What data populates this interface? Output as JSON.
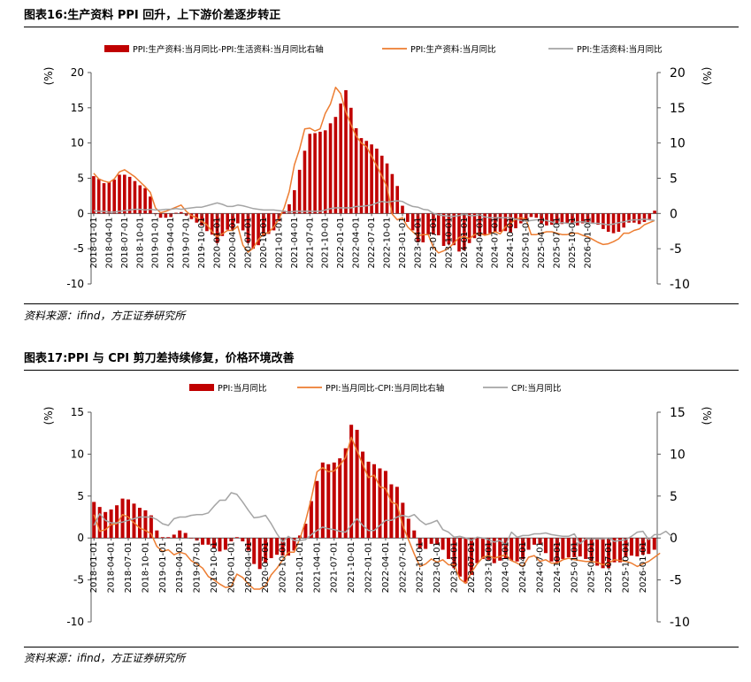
{
  "figures": [
    {
      "title": "图表16:生产资料 PPI 回升，上下游价差逐步转正",
      "source": "资料来源：ifind，方正证券研究所",
      "left_unit": "(%)",
      "right_unit": "(%)",
      "legend": [
        "PPI:生产资料:当月同比-PPI:生活资料:当月同比右轴",
        "PPI:生产资料:当月同比",
        "PPI:生活资料:当月同比"
      ]
    },
    {
      "title": "图表17:PPI 与 CPI 剪刀差持续修复，价格环境改善",
      "source": "资料来源：ifind，方正证券研究所",
      "left_unit": "(%)",
      "right_unit": "(%)",
      "legend": [
        "PPI:当月同比",
        "PPI:当月同比-CPI:当月同比右轴",
        "CPI:当月同比"
      ]
    }
  ],
  "colors": {
    "bar": "#c00000",
    "line_orange": "#ed7d31",
    "line_gray": "#a5a5a5",
    "axis": "#595959"
  },
  "chart_data": [
    {
      "type": "bar",
      "title": "图表16:生产资料 PPI 回升，上下游价差逐步转正",
      "x_labels": [
        "2018-01-01",
        "2018-04-01",
        "2018-07-01",
        "2018-10-01",
        "2019-01-01",
        "2019-04-01",
        "2019-07-01",
        "2019-10-01",
        "2020-01-01",
        "2020-04-01",
        "2020-07-01",
        "2020-10-01",
        "2021-01-01",
        "2021-04-01",
        "2021-07-01",
        "2021-10-01",
        "2022-01-01",
        "2022-04-01",
        "2022-07-01",
        "2022-10-01",
        "2023-01-01",
        "2023-04-01",
        "2023-07-01",
        "2023-10-01",
        "2024-01-01",
        "2024-04-01",
        "2024-07-01",
        "2024-10-01",
        "2025-01-01",
        "2025-04-01",
        "2025-07-01",
        "2025-10-01",
        "2026-01-01"
      ],
      "y_left": {
        "min": -10,
        "max": 20,
        "ticks": [
          -10,
          -5,
          0,
          5,
          10,
          15,
          20
        ]
      },
      "y_right": {
        "min": -10,
        "max": 20,
        "ticks": [
          -10,
          -5,
          0,
          5,
          10,
          15,
          20
        ]
      },
      "series": [
        {
          "name": "PPI:生产资料:当月同比-PPI:生活资料:当月同比右轴",
          "kind": "bar",
          "axis": "right",
          "values": [
            5.3,
            4.9,
            4.3,
            4.5,
            4.8,
            5.5,
            5.5,
            5.2,
            4.6,
            4.0,
            3.6,
            2.4,
            -0.1,
            -0.6,
            -0.6,
            -0.5,
            0.1,
            0.2,
            -0.3,
            -0.8,
            -1.3,
            -1.7,
            -2.5,
            -3.0,
            -4.2,
            -3.2,
            -2.3,
            -2.3,
            -1.4,
            -2.4,
            -4.2,
            -5.0,
            -4.5,
            -3.2,
            -2.9,
            -2.4,
            -1.1,
            0.4,
            1.3,
            3.3,
            6.2,
            8.9,
            11.3,
            11.4,
            11.6,
            11.8,
            12.8,
            13.7,
            15.6,
            17.5,
            15.0,
            12.1,
            10.7,
            10.3,
            9.8,
            9.2,
            8.2,
            7.1,
            5.6,
            3.9,
            1.1,
            -1.2,
            -2.4,
            -4.1,
            -4.1,
            -3.0,
            -3.0,
            -3.1,
            -4.6,
            -4.4,
            -4.5,
            -5.4,
            -5.2,
            -4.2,
            -3.5,
            -3.2,
            -3.0,
            -2.8,
            -2.7,
            -2.6,
            -2.5,
            -2.7,
            -2.1,
            -1.4,
            -1.0,
            -0.5,
            -0.6,
            -1.4,
            -1.7,
            -1.6,
            -1.4,
            -1.5,
            -1.4,
            -1.5,
            -1.7,
            -1.4,
            -1.4,
            -1.3,
            -1.6,
            -2.2,
            -2.6,
            -2.8,
            -2.6,
            -2.0,
            -1.3,
            -1.3,
            -1.5,
            -1.2,
            -0.8,
            0.4
          ]
        },
        {
          "name": "PPI:生产资料:当月同比",
          "kind": "line",
          "axis": "left",
          "values": [
            5.7,
            4.9,
            4.6,
            4.4,
            4.9,
            5.9,
            6.2,
            5.7,
            5.2,
            4.5,
            3.8,
            3.0,
            0.8,
            0.1,
            0.3,
            0.6,
            0.9,
            1.2,
            0.3,
            -0.3,
            -0.6,
            -1.1,
            -1.6,
            -2.6,
            -3.3,
            -2.9,
            -2.4,
            -2.4,
            -1.8,
            -4.5,
            -5.5,
            -4.9,
            -3.7,
            -2.9,
            -2.7,
            -1.9,
            -0.8,
            0.8,
            3.1,
            6.9,
            9.1,
            12.0,
            12.1,
            11.7,
            12.0,
            14.2,
            15.5,
            17.9,
            17.0,
            14.4,
            12.6,
            11.0,
            10.0,
            9.5,
            8.1,
            6.8,
            5.3,
            3.8,
            -0.1,
            -0.9,
            -0.6,
            -1.9,
            -2.6,
            -3.2,
            -3.0,
            -3.0,
            -4.8,
            -5.6,
            -5.3,
            -4.9,
            -4.2,
            -3.4,
            -3.3,
            -3.6,
            -3.0,
            -2.8,
            -3.1,
            -2.9,
            -2.6,
            -2.9,
            -1.9,
            -1.4,
            -0.8,
            -0.6,
            -0.8,
            -3.0,
            -3.0,
            -2.8,
            -2.6,
            -2.6,
            -2.8,
            -3.0,
            -3.0,
            -2.8,
            -2.8,
            -3.1,
            -3.3,
            -3.7,
            -4.1,
            -4.4,
            -4.3,
            -4.0,
            -3.6,
            -2.8,
            -2.8,
            -2.4,
            -2.2,
            -1.6,
            -1.3,
            -1.0
          ]
        },
        {
          "name": "PPI:生活资料:当月同比",
          "kind": "line",
          "axis": "left",
          "values": [
            0.4,
            0.3,
            0.3,
            0.2,
            0.2,
            0.3,
            0.4,
            0.5,
            0.6,
            0.6,
            0.5,
            0.6,
            0.5,
            0.5,
            0.6,
            0.6,
            0.7,
            0.6,
            0.7,
            0.8,
            0.9,
            0.9,
            1.1,
            1.3,
            1.5,
            1.3,
            1.0,
            1.0,
            1.2,
            1.1,
            0.9,
            0.7,
            0.6,
            0.5,
            0.5,
            0.5,
            0.4,
            0.3,
            0.2,
            0.3,
            0.3,
            0.3,
            0.3,
            0.3,
            0.3,
            0.5,
            0.7,
            0.8,
            0.8,
            0.8,
            0.8,
            1.0,
            1.0,
            1.1,
            1.2,
            1.5,
            1.7,
            1.6,
            1.7,
            1.8,
            1.7,
            1.3,
            1.0,
            0.9,
            0.6,
            0.5,
            0.0,
            -0.2,
            -0.3,
            -0.4,
            -0.4,
            -0.3,
            -0.1,
            -0.3,
            -0.3,
            -0.2,
            -0.5,
            -0.6,
            -0.6,
            -0.6,
            -0.6,
            -0.6,
            -0.8,
            -1.0,
            -1.1,
            -1.0,
            -0.9,
            -0.9,
            -1.0,
            -1.2,
            -1.5,
            -1.3,
            -1.4,
            -1.4,
            -1.2,
            -1.2,
            -1.3,
            -1.4,
            -1.4,
            -1.5,
            -1.6,
            -1.5,
            -1.3,
            -1.2,
            -1.0,
            -0.9,
            -0.9,
            -0.8,
            -0.9,
            -1.0
          ]
        }
      ]
    },
    {
      "type": "bar",
      "title": "图表17:PPI 与 CPI 剪刀差持续修复，价格环境改善",
      "x_labels": [
        "2018-01-01",
        "2018-04-01",
        "2018-07-01",
        "2018-10-01",
        "2019-01-01",
        "2019-04-01",
        "2019-07-01",
        "2019-10-01",
        "2020-01-01",
        "2020-04-01",
        "2020-07-01",
        "2020-10-01",
        "2021-01-01",
        "2021-04-01",
        "2021-07-01",
        "2021-10-01",
        "2022-01-01",
        "2022-04-01",
        "2022-07-01",
        "2022-10-01",
        "2023-01-01",
        "2023-04-01",
        "2023-07-01",
        "2023-10-01",
        "2024-01-01",
        "2024-04-01",
        "2024-07-01",
        "2024-10-01",
        "2025-01-01",
        "2025-04-01",
        "2025-07-01",
        "2025-10-01",
        "2026-01-01"
      ],
      "y_left": {
        "min": -10,
        "max": 15,
        "ticks": [
          -10,
          -5,
          0,
          5,
          10,
          15
        ]
      },
      "y_right": {
        "min": -10,
        "max": 15,
        "ticks": [
          -10,
          -5,
          0,
          5,
          10,
          15
        ]
      },
      "series": [
        {
          "name": "PPI:当月同比",
          "kind": "bar",
          "axis": "left",
          "values": [
            4.3,
            3.7,
            3.1,
            3.4,
            3.9,
            4.7,
            4.6,
            4.1,
            3.6,
            3.3,
            2.7,
            0.9,
            0.1,
            0.1,
            0.4,
            0.9,
            0.6,
            0.0,
            -0.3,
            -0.8,
            -0.8,
            -1.2,
            -1.6,
            -1.4,
            -0.4,
            0.1,
            -0.4,
            -1.5,
            -3.1,
            -3.7,
            -3.0,
            -2.4,
            -2.0,
            -2.1,
            -2.1,
            -1.5,
            0.3,
            1.7,
            4.4,
            6.8,
            9.0,
            8.8,
            9.0,
            9.5,
            10.7,
            13.5,
            12.9,
            10.3,
            9.1,
            8.8,
            8.3,
            8.0,
            6.4,
            6.1,
            4.2,
            2.3,
            0.9,
            -1.3,
            -1.3,
            -0.7,
            -0.8,
            -1.4,
            -2.5,
            -3.6,
            -4.6,
            -5.4,
            -4.4,
            -3.0,
            -2.5,
            -2.6,
            -3.0,
            -2.7,
            -2.5,
            -2.7,
            -2.8,
            -2.5,
            -1.4,
            -0.8,
            -0.8,
            -1.8,
            -2.8,
            -2.9,
            -2.5,
            -2.3,
            -2.3,
            -2.2,
            -2.5,
            -2.7,
            -3.3,
            -3.6,
            -3.6,
            -2.9,
            -2.9,
            -2.3,
            -2.1,
            -2.2,
            -2.0,
            -1.9,
            -1.4
          ]
        },
        {
          "name": "PPI:当月同比-CPI:当月同比右轴",
          "kind": "line",
          "axis": "right",
          "values": [
            2.8,
            0.8,
            1.0,
            1.6,
            1.7,
            2.8,
            2.5,
            1.8,
            1.2,
            0.9,
            0.5,
            -1.0,
            -1.6,
            -1.4,
            -2.0,
            -1.7,
            -1.9,
            -2.7,
            -3.1,
            -3.6,
            -4.6,
            -5.0,
            -5.5,
            -5.9,
            -5.8,
            -4.3,
            -4.7,
            -5.5,
            -6.1,
            -6.1,
            -5.7,
            -4.4,
            -3.6,
            -2.6,
            -1.7,
            -1.7,
            -0.1,
            2.0,
            4.7,
            7.9,
            8.4,
            7.9,
            8.0,
            8.7,
            9.6,
            12.0,
            10.4,
            8.8,
            7.2,
            7.5,
            6.1,
            5.9,
            4.3,
            4.0,
            1.5,
            -0.2,
            -1.9,
            -3.4,
            -3.1,
            -2.5,
            -2.9,
            -2.6,
            -3.2,
            -3.2,
            -4.9,
            -5.4,
            -4.1,
            -3.1,
            -2.3,
            -2.1,
            -2.4,
            -2.2,
            -2.0,
            -2.7,
            -3.0,
            -3.4,
            -2.3,
            -2.1,
            -2.8,
            -2.6,
            -3.0,
            -3.0,
            -2.6,
            -2.4,
            -2.6,
            -2.7,
            -2.8,
            -2.8,
            -2.9,
            -3.2,
            -3.0,
            -2.6,
            -2.7,
            -2.8,
            -3.0,
            -3.4,
            -3.1,
            -2.8,
            -2.3,
            -1.8
          ]
        },
        {
          "name": "CPI:当月同比",
          "kind": "line",
          "axis": "left",
          "values": [
            1.5,
            2.9,
            2.1,
            1.8,
            1.8,
            1.9,
            2.1,
            2.3,
            2.5,
            2.5,
            2.5,
            2.2,
            1.7,
            1.5,
            2.3,
            2.5,
            2.5,
            2.7,
            2.8,
            2.8,
            3.0,
            3.8,
            4.5,
            4.5,
            5.4,
            5.2,
            4.3,
            3.3,
            2.4,
            2.5,
            2.7,
            1.7,
            0.5,
            -0.5,
            0.2,
            -0.3,
            -0.3,
            -0.2,
            0.4,
            0.9,
            1.3,
            1.1,
            1.0,
            0.8,
            0.7,
            1.5,
            2.3,
            1.5,
            0.9,
            0.9,
            1.5,
            2.1,
            2.1,
            2.5,
            2.7,
            2.5,
            2.8,
            2.1,
            1.6,
            1.8,
            2.1,
            1.0,
            0.7,
            0.1,
            0.2,
            0.0,
            -0.3,
            0.1,
            0.0,
            -0.2,
            -0.5,
            -0.3,
            -0.8,
            0.7,
            0.1,
            0.3,
            0.3,
            0.5,
            0.5,
            0.6,
            0.4,
            0.3,
            0.2,
            0.2,
            0.5,
            -0.7,
            -0.1,
            -0.1,
            -0.1,
            -0.1,
            0.0,
            -0.4,
            -0.3,
            -0.2,
            0.2,
            0.7,
            0.8,
            -0.2,
            0.4,
            0.4,
            0.8,
            0.2
          ]
        }
      ]
    }
  ]
}
